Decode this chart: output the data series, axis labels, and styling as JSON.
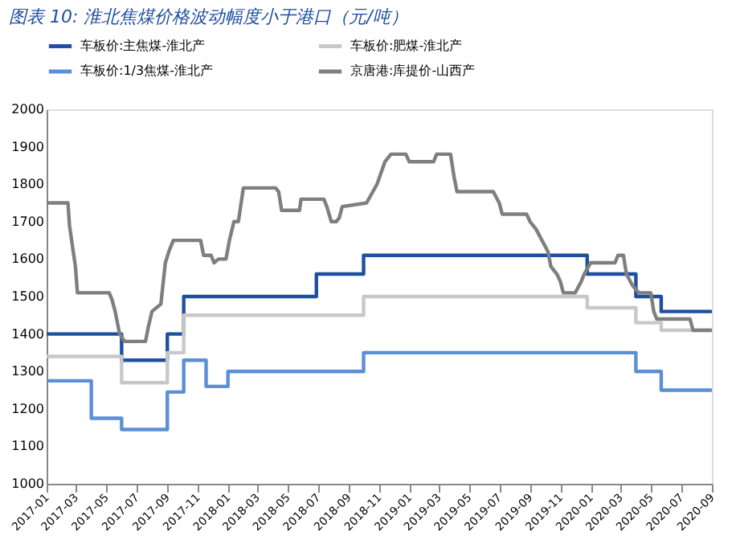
{
  "chart_data": {
    "type": "line",
    "title": "图表 10: 淮北焦煤价格波动幅度小于港口（元/吨）",
    "xlim": [
      "2017-01",
      "2020-09"
    ],
    "xticks": [
      "2017-01",
      "2017-03",
      "2017-05",
      "2017-07",
      "2017-09",
      "2017-11",
      "2018-01",
      "2018-03",
      "2018-05",
      "2018-07",
      "2018-09",
      "2018-11",
      "2019-01",
      "2019-03",
      "2019-05",
      "2019-07",
      "2019-09",
      "2019-11",
      "2020-01",
      "2020-03",
      "2020-05",
      "2020-07",
      "2020-09"
    ],
    "ylim": [
      1000,
      2000
    ],
    "yticks": [
      1000,
      1100,
      1200,
      1300,
      1400,
      1500,
      1600,
      1700,
      1800,
      1900,
      2000
    ],
    "grid": false,
    "legend": "top",
    "marker": "none",
    "line_style": "solid",
    "series": [
      {
        "name": "车板价:主焦煤-淮北产",
        "type": "step",
        "color": "#1f4fa0",
        "x": [
          "2017-01-01",
          "2017-06-01",
          "2017-09-01",
          "2017-10-04",
          "2018-06-28",
          "2018-10-01",
          "2019-12-25",
          "2020-04-01",
          "2020-05-22",
          "2020-09-01"
        ],
        "values": [
          1400,
          1330,
          1400,
          1500,
          1560,
          1610,
          1560,
          1500,
          1460,
          1460
        ]
      },
      {
        "name": "车板价:肥煤-淮北产",
        "type": "step",
        "color": "#c8c8c8",
        "x": [
          "2017-01-01",
          "2017-06-01",
          "2017-09-01",
          "2017-10-04",
          "2018-10-01",
          "2019-12-25",
          "2020-04-01",
          "2020-05-22",
          "2020-09-01"
        ],
        "values": [
          1340,
          1270,
          1350,
          1450,
          1500,
          1470,
          1430,
          1410,
          1410
        ]
      },
      {
        "name": "车板价:1/3焦煤-淮北产",
        "type": "step",
        "color": "#5b8fd6",
        "x": [
          "2017-01-01",
          "2017-04-01",
          "2017-06-01",
          "2017-09-01",
          "2017-10-04",
          "2017-11-18",
          "2018-01-01",
          "2018-10-01",
          "2020-04-01",
          "2020-05-22",
          "2020-09-01"
        ],
        "values": [
          1275,
          1175,
          1145,
          1245,
          1330,
          1260,
          1300,
          1350,
          1300,
          1250,
          1250
        ]
      },
      {
        "name": "京唐港:库提价-山西产",
        "type": "line",
        "color": "#7f7f7f",
        "x": [
          "2017-01-01",
          "2017-02-13",
          "2017-02-16",
          "2017-02-28",
          "2017-03-04",
          "2017-05-07",
          "2017-05-13",
          "2017-05-19",
          "2017-05-28",
          "2017-06-07",
          "2017-07-19",
          "2017-07-25",
          "2017-08-01",
          "2017-08-19",
          "2017-08-28",
          "2017-09-04",
          "2017-09-13",
          "2017-11-07",
          "2017-11-13",
          "2017-11-28",
          "2017-12-04",
          "2017-12-13",
          "2017-12-28",
          "2018-01-04",
          "2018-01-13",
          "2018-01-22",
          "2018-02-01",
          "2018-04-07",
          "2018-04-13",
          "2018-04-19",
          "2018-05-25",
          "2018-05-28",
          "2018-07-13",
          "2018-07-19",
          "2018-07-28",
          "2018-08-07",
          "2018-08-13",
          "2018-08-19",
          "2018-10-07",
          "2018-10-28",
          "2018-11-13",
          "2018-11-25",
          "2018-12-25",
          "2019-01-01",
          "2019-02-19",
          "2019-02-25",
          "2019-03-25",
          "2019-04-01",
          "2019-04-07",
          "2019-06-19",
          "2019-07-01",
          "2019-07-07",
          "2019-08-25",
          "2019-09-01",
          "2019-09-13",
          "2019-10-07",
          "2019-10-13",
          "2019-10-25",
          "2019-11-01",
          "2019-11-07",
          "2019-12-01",
          "2019-12-13",
          "2019-12-19",
          "2020-01-01",
          "2020-02-19",
          "2020-02-25",
          "2020-03-07",
          "2020-03-13",
          "2020-03-25",
          "2020-04-07",
          "2020-05-01",
          "2020-05-07",
          "2020-05-13",
          "2020-07-19",
          "2020-07-25",
          "2020-09-01"
        ],
        "values": [
          1750,
          1750,
          1690,
          1580,
          1510,
          1510,
          1490,
          1460,
          1400,
          1380,
          1380,
          1420,
          1460,
          1480,
          1590,
          1620,
          1650,
          1650,
          1610,
          1610,
          1590,
          1600,
          1600,
          1650,
          1700,
          1700,
          1790,
          1790,
          1780,
          1730,
          1730,
          1760,
          1760,
          1740,
          1700,
          1700,
          1710,
          1740,
          1750,
          1800,
          1860,
          1880,
          1880,
          1860,
          1860,
          1880,
          1880,
          1820,
          1780,
          1780,
          1750,
          1720,
          1720,
          1700,
          1680,
          1620,
          1580,
          1560,
          1540,
          1510,
          1510,
          1540,
          1560,
          1590,
          1590,
          1610,
          1610,
          1560,
          1530,
          1510,
          1510,
          1460,
          1440,
          1440,
          1410,
          1410
        ]
      }
    ]
  }
}
